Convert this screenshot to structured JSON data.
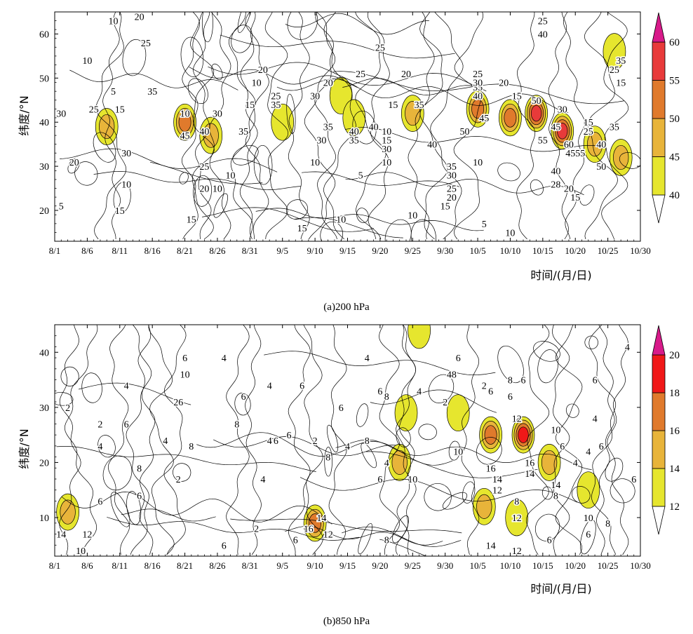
{
  "chart_data": [
    {
      "type": "heatmap",
      "caption": "(a)200 hPa",
      "ylabel": "纬度/°N",
      "xlabel": "时间/(月/日)",
      "x_ticks": [
        "8/1",
        "8/6",
        "8/11",
        "8/16",
        "8/21",
        "8/26",
        "8/31",
        "9/5",
        "9/10",
        "9/15",
        "9/20",
        "9/25",
        "9/30",
        "10/5",
        "10/10",
        "10/15",
        "10/20",
        "10/25",
        "10/30"
      ],
      "y_ticks": [
        20,
        30,
        40,
        50,
        60
      ],
      "ylim": [
        13,
        65
      ],
      "colorbar": {
        "ticks": [
          40,
          45,
          50,
          55,
          60
        ],
        "colors": [
          "#e6e62e",
          "#e8b43a",
          "#e07a2c",
          "#e83a3a",
          "#d81a8a"
        ]
      },
      "shaded_cells": [
        {
          "day": 8,
          "lat": 39,
          "value": 45
        },
        {
          "day": 20,
          "lat": 40,
          "value": 52
        },
        {
          "day": 24,
          "lat": 37,
          "value": 46
        },
        {
          "day": 35,
          "lat": 40,
          "value": 44
        },
        {
          "day": 44,
          "lat": 46,
          "value": 44
        },
        {
          "day": 46,
          "lat": 41,
          "value": 43
        },
        {
          "day": 55,
          "lat": 42,
          "value": 47
        },
        {
          "day": 65,
          "lat": 43,
          "value": 52
        },
        {
          "day": 70,
          "lat": 41,
          "value": 51
        },
        {
          "day": 74,
          "lat": 42,
          "value": 58
        },
        {
          "day": 78,
          "lat": 38,
          "value": 56
        },
        {
          "day": 83,
          "lat": 35,
          "value": 48
        },
        {
          "day": 87,
          "lat": 32,
          "value": 47
        },
        {
          "day": 86,
          "lat": 56,
          "value": 42
        }
      ],
      "contour_labels": [
        {
          "day": 9,
          "lat": 63,
          "text": "10"
        },
        {
          "day": 13,
          "lat": 64,
          "text": "20"
        },
        {
          "day": 14,
          "lat": 58,
          "text": "25"
        },
        {
          "day": 5,
          "lat": 54,
          "text": "10"
        },
        {
          "day": 9,
          "lat": 47,
          "text": "5"
        },
        {
          "day": 15,
          "lat": 47,
          "text": "35"
        },
        {
          "day": 6,
          "lat": 43,
          "text": "25"
        },
        {
          "day": 1,
          "lat": 42,
          "text": "30"
        },
        {
          "day": 10,
          "lat": 43,
          "text": "15"
        },
        {
          "day": 20,
          "lat": 42,
          "text": "10"
        },
        {
          "day": 25,
          "lat": 42,
          "text": "30"
        },
        {
          "day": 20,
          "lat": 37,
          "text": "45"
        },
        {
          "day": 23,
          "lat": 38,
          "text": "40"
        },
        {
          "day": 29,
          "lat": 38,
          "text": "35"
        },
        {
          "day": 23,
          "lat": 30,
          "text": "25"
        },
        {
          "day": 23,
          "lat": 25,
          "text": "20"
        },
        {
          "day": 21,
          "lat": 18,
          "text": "15"
        },
        {
          "day": 11,
          "lat": 33,
          "text": "30"
        },
        {
          "day": 11,
          "lat": 26,
          "text": "10"
        },
        {
          "day": 3,
          "lat": 31,
          "text": "20"
        },
        {
          "day": 10,
          "lat": 20,
          "text": "15"
        },
        {
          "day": 1,
          "lat": 21,
          "text": "5"
        },
        {
          "day": 25,
          "lat": 25,
          "text": "10"
        },
        {
          "day": 31,
          "lat": 49,
          "text": "10"
        },
        {
          "day": 30,
          "lat": 44,
          "text": "15"
        },
        {
          "day": 32,
          "lat": 52,
          "text": "20"
        },
        {
          "day": 34,
          "lat": 46,
          "text": "25"
        },
        {
          "day": 34,
          "lat": 44,
          "text": "35"
        },
        {
          "day": 40,
          "lat": 46,
          "text": "30"
        },
        {
          "day": 42,
          "lat": 49,
          "text": "20"
        },
        {
          "day": 41,
          "lat": 36,
          "text": "30"
        },
        {
          "day": 42,
          "lat": 39,
          "text": "35"
        },
        {
          "day": 46,
          "lat": 38,
          "text": "40"
        },
        {
          "day": 46,
          "lat": 36,
          "text": "35"
        },
        {
          "day": 47,
          "lat": 51,
          "text": "25"
        },
        {
          "day": 49,
          "lat": 39,
          "text": "40"
        },
        {
          "day": 51,
          "lat": 38,
          "text": "10"
        },
        {
          "day": 51,
          "lat": 36,
          "text": "15"
        },
        {
          "day": 51,
          "lat": 34,
          "text": "30"
        },
        {
          "day": 52,
          "lat": 44,
          "text": "15"
        },
        {
          "day": 54,
          "lat": 51,
          "text": "20"
        },
        {
          "day": 56,
          "lat": 44,
          "text": "35"
        },
        {
          "day": 58,
          "lat": 35,
          "text": "40"
        },
        {
          "day": 50,
          "lat": 57,
          "text": "25"
        },
        {
          "day": 40,
          "lat": 31,
          "text": "10"
        },
        {
          "day": 47,
          "lat": 28,
          "text": "5"
        },
        {
          "day": 44,
          "lat": 18,
          "text": "10"
        },
        {
          "day": 38,
          "lat": 16,
          "text": "15"
        },
        {
          "day": 27,
          "lat": 28,
          "text": "10"
        },
        {
          "day": 51,
          "lat": 31,
          "text": "10"
        },
        {
          "day": 55,
          "lat": 19,
          "text": "10"
        },
        {
          "day": 60,
          "lat": 21,
          "text": "15"
        },
        {
          "day": 61,
          "lat": 23,
          "text": "20"
        },
        {
          "day": 61,
          "lat": 25,
          "text": "25"
        },
        {
          "day": 61,
          "lat": 28,
          "text": "30"
        },
        {
          "day": 61,
          "lat": 30,
          "text": "35"
        },
        {
          "day": 63,
          "lat": 38,
          "text": "50"
        },
        {
          "day": 66,
          "lat": 41,
          "text": "45"
        },
        {
          "day": 65,
          "lat": 46,
          "text": "40"
        },
        {
          "day": 65,
          "lat": 48,
          "text": "35"
        },
        {
          "day": 65,
          "lat": 49,
          "text": "30"
        },
        {
          "day": 65,
          "lat": 51,
          "text": "25"
        },
        {
          "day": 69,
          "lat": 49,
          "text": "20"
        },
        {
          "day": 71,
          "lat": 46,
          "text": "15"
        },
        {
          "day": 65,
          "lat": 31,
          "text": "10"
        },
        {
          "day": 66,
          "lat": 17,
          "text": "5"
        },
        {
          "day": 70,
          "lat": 15,
          "text": "10"
        },
        {
          "day": 75,
          "lat": 63,
          "text": "25"
        },
        {
          "day": 75,
          "lat": 60,
          "text": "40"
        },
        {
          "day": 74,
          "lat": 45,
          "text": "50"
        },
        {
          "day": 75,
          "lat": 36,
          "text": "55"
        },
        {
          "day": 77,
          "lat": 39,
          "text": "45"
        },
        {
          "day": 78,
          "lat": 43,
          "text": "30"
        },
        {
          "day": 79,
          "lat": 35,
          "text": "60"
        },
        {
          "day": 80,
          "lat": 33,
          "text": "4555"
        },
        {
          "day": 84,
          "lat": 30,
          "text": "50"
        },
        {
          "day": 84,
          "lat": 35,
          "text": "40"
        },
        {
          "day": 86,
          "lat": 39,
          "text": "35"
        },
        {
          "day": 82,
          "lat": 40,
          "text": "15"
        },
        {
          "day": 82,
          "lat": 38,
          "text": "25"
        },
        {
          "day": 77,
          "lat": 29,
          "text": "40"
        },
        {
          "day": 77,
          "lat": 26,
          "text": "28"
        },
        {
          "day": 79,
          "lat": 25,
          "text": "20"
        },
        {
          "day": 80,
          "lat": 23,
          "text": "15"
        },
        {
          "day": 87,
          "lat": 54,
          "text": "35"
        },
        {
          "day": 86,
          "lat": 52,
          "text": "25"
        },
        {
          "day": 87,
          "lat": 49,
          "text": "15"
        }
      ]
    },
    {
      "type": "heatmap",
      "caption": "(b)850 hPa",
      "ylabel": "纬度/°N",
      "xlabel": "时间/(月/日)",
      "x_ticks": [
        "8/1",
        "8/6",
        "8/11",
        "8/16",
        "8/21",
        "8/26",
        "8/31",
        "9/5",
        "9/10",
        "9/15",
        "9/20",
        "9/25",
        "9/30",
        "10/5",
        "10/10",
        "10/15",
        "10/20",
        "10/25",
        "10/30"
      ],
      "y_ticks": [
        10,
        20,
        30,
        40
      ],
      "ylim": [
        3,
        45
      ],
      "colorbar": {
        "ticks": [
          12,
          14,
          16,
          18,
          20
        ],
        "colors": [
          "#e6e62e",
          "#e8b43a",
          "#e07a2c",
          "#f01818",
          "#d81a8a"
        ]
      },
      "shaded_cells": [
        {
          "day": 2,
          "lat": 11,
          "value": 15
        },
        {
          "day": 40,
          "lat": 9,
          "value": 17
        },
        {
          "day": 54,
          "lat": 29,
          "value": 13
        },
        {
          "day": 53,
          "lat": 20,
          "value": 14
        },
        {
          "day": 62,
          "lat": 29,
          "value": 13
        },
        {
          "day": 67,
          "lat": 25,
          "value": 17
        },
        {
          "day": 72,
          "lat": 25,
          "value": 18
        },
        {
          "day": 66,
          "lat": 12,
          "value": 15
        },
        {
          "day": 71,
          "lat": 10,
          "value": 13
        },
        {
          "day": 76,
          "lat": 20,
          "value": 15
        },
        {
          "day": 82,
          "lat": 15,
          "value": 12
        },
        {
          "day": 56,
          "lat": 44,
          "value": 12
        }
      ],
      "contour_labels": [
        {
          "day": 20,
          "lat": 39,
          "text": "6"
        },
        {
          "day": 20,
          "lat": 36,
          "text": "10"
        },
        {
          "day": 11,
          "lat": 34,
          "text": "4"
        },
        {
          "day": 19,
          "lat": 31,
          "text": "26"
        },
        {
          "day": 2,
          "lat": 30,
          "text": "2"
        },
        {
          "day": 7,
          "lat": 27,
          "text": "2"
        },
        {
          "day": 11,
          "lat": 27,
          "text": "6"
        },
        {
          "day": 7,
          "lat": 23,
          "text": "4"
        },
        {
          "day": 17,
          "lat": 24,
          "text": "4"
        },
        {
          "day": 21,
          "lat": 23,
          "text": "8"
        },
        {
          "day": 13,
          "lat": 19,
          "text": "8"
        },
        {
          "day": 19,
          "lat": 17,
          "text": "2"
        },
        {
          "day": 13,
          "lat": 14,
          "text": "6"
        },
        {
          "day": 7,
          "lat": 13,
          "text": "6"
        },
        {
          "day": 1,
          "lat": 7,
          "text": "14"
        },
        {
          "day": 5,
          "lat": 7,
          "text": "12"
        },
        {
          "day": 4,
          "lat": 4,
          "text": "10"
        },
        {
          "day": 26,
          "lat": 39,
          "text": "4"
        },
        {
          "day": 29,
          "lat": 32,
          "text": "6"
        },
        {
          "day": 28,
          "lat": 27,
          "text": "8"
        },
        {
          "day": 33,
          "lat": 24,
          "text": "4"
        },
        {
          "day": 36,
          "lat": 25,
          "text": "6"
        },
        {
          "day": 34,
          "lat": 24,
          "text": "6"
        },
        {
          "day": 33,
          "lat": 34,
          "text": "4"
        },
        {
          "day": 38,
          "lat": 34,
          "text": "6"
        },
        {
          "day": 40,
          "lat": 24,
          "text": "2"
        },
        {
          "day": 42,
          "lat": 21,
          "text": "8"
        },
        {
          "day": 32,
          "lat": 17,
          "text": "4"
        },
        {
          "day": 31,
          "lat": 8,
          "text": "2"
        },
        {
          "day": 26,
          "lat": 5,
          "text": "6"
        },
        {
          "day": 37,
          "lat": 6,
          "text": "6"
        },
        {
          "day": 41,
          "lat": 10,
          "text": "14"
        },
        {
          "day": 39,
          "lat": 8,
          "text": "16"
        },
        {
          "day": 42,
          "lat": 7,
          "text": "12"
        },
        {
          "day": 44,
          "lat": 30,
          "text": "6"
        },
        {
          "day": 45,
          "lat": 23,
          "text": "4"
        },
        {
          "day": 48,
          "lat": 39,
          "text": "4"
        },
        {
          "day": 48,
          "lat": 24,
          "text": "8"
        },
        {
          "day": 51,
          "lat": 20,
          "text": "4"
        },
        {
          "day": 50,
          "lat": 33,
          "text": "6"
        },
        {
          "day": 51,
          "lat": 32,
          "text": "8"
        },
        {
          "day": 51,
          "lat": 6,
          "text": "8"
        },
        {
          "day": 50,
          "lat": 17,
          "text": "6"
        },
        {
          "day": 55,
          "lat": 17,
          "text": "10"
        },
        {
          "day": 56,
          "lat": 33,
          "text": "4"
        },
        {
          "day": 60,
          "lat": 31,
          "text": "2"
        },
        {
          "day": 61,
          "lat": 36,
          "text": "48"
        },
        {
          "day": 62,
          "lat": 39,
          "text": "6"
        },
        {
          "day": 62,
          "lat": 22,
          "text": "10"
        },
        {
          "day": 66,
          "lat": 34,
          "text": "2"
        },
        {
          "day": 67,
          "lat": 33,
          "text": "6"
        },
        {
          "day": 70,
          "lat": 32,
          "text": "6"
        },
        {
          "day": 70,
          "lat": 35,
          "text": "8"
        },
        {
          "day": 72,
          "lat": 35,
          "text": "6"
        },
        {
          "day": 71,
          "lat": 28,
          "text": "12"
        },
        {
          "day": 67,
          "lat": 19,
          "text": "16"
        },
        {
          "day": 68,
          "lat": 17,
          "text": "14"
        },
        {
          "day": 68,
          "lat": 15,
          "text": "12"
        },
        {
          "day": 73,
          "lat": 20,
          "text": "16"
        },
        {
          "day": 73,
          "lat": 18,
          "text": "14"
        },
        {
          "day": 71,
          "lat": 13,
          "text": "8"
        },
        {
          "day": 71,
          "lat": 10,
          "text": "12"
        },
        {
          "day": 67,
          "lat": 5,
          "text": "14"
        },
        {
          "day": 71,
          "lat": 4,
          "text": "12"
        },
        {
          "day": 77,
          "lat": 26,
          "text": "10"
        },
        {
          "day": 78,
          "lat": 23,
          "text": "6"
        },
        {
          "day": 77,
          "lat": 16,
          "text": "14"
        },
        {
          "day": 77,
          "lat": 14,
          "text": "8"
        },
        {
          "day": 76,
          "lat": 6,
          "text": "6"
        },
        {
          "day": 80,
          "lat": 20,
          "text": "4"
        },
        {
          "day": 84,
          "lat": 23,
          "text": "6"
        },
        {
          "day": 82,
          "lat": 22,
          "text": "4"
        },
        {
          "day": 83,
          "lat": 28,
          "text": "4"
        },
        {
          "day": 83,
          "lat": 35,
          "text": "6"
        },
        {
          "day": 88,
          "lat": 41,
          "text": "4"
        },
        {
          "day": 82,
          "lat": 10,
          "text": "10"
        },
        {
          "day": 82,
          "lat": 7,
          "text": "6"
        },
        {
          "day": 89,
          "lat": 17,
          "text": "6"
        },
        {
          "day": 85,
          "lat": 9,
          "text": "8"
        }
      ]
    }
  ]
}
